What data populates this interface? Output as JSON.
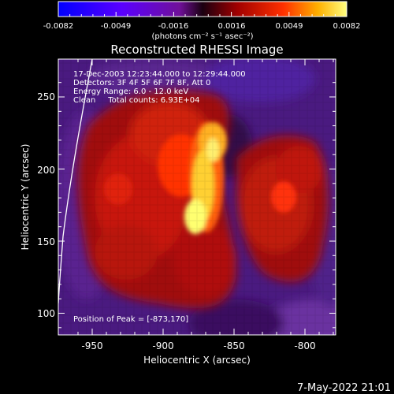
{
  "colorbar": {
    "ticks": [
      "-0.0082",
      "-0.0049",
      "-0.0016",
      "0.0016",
      "0.0049",
      "0.0082"
    ],
    "unit_label": "(photons cm⁻² s⁻¹ asec⁻²)"
  },
  "plot": {
    "title": "Reconstructed RHESSI Image",
    "xlabel": "Heliocentric X (arcsec)",
    "ylabel": "Heliocentric Y (arcsec)",
    "x_ticks": [
      "-950",
      "-900",
      "-850",
      "-800"
    ],
    "y_ticks": [
      "250",
      "200",
      "150",
      "100"
    ]
  },
  "info": {
    "line1": "17-Dec-2003 12:23:44.000 to 12:29:44.000",
    "line2": "Detectors: 3F 4F 5F 6F 7F 8F, Att 0",
    "line3": "Energy Range: 6.0 - 12.0 keV",
    "line4": "Clean     Total counts: 6.93E+04",
    "peak": "Position of Peak = [-873,170]"
  },
  "footer": {
    "timestamp": "7-May-2022 21:01"
  },
  "colors": {
    "background": "#000000",
    "text": "#ffffff",
    "negative_low": "#0000ff",
    "negative_mid": "#7a00ff",
    "zero": "#1a0030",
    "pos_mid": "#ff2000",
    "pos_high": "#ffff60"
  },
  "chart_data": {
    "type": "heatmap",
    "title": "Reconstructed RHESSI Image",
    "xlabel": "Heliocentric X (arcsec)",
    "ylabel": "Heliocentric Y (arcsec)",
    "xlim": [
      -970,
      -775
    ],
    "ylim": [
      85,
      270
    ],
    "colorbar_range": [
      -0.0082,
      0.0082
    ],
    "peak": [
      -873,
      170
    ]
  }
}
